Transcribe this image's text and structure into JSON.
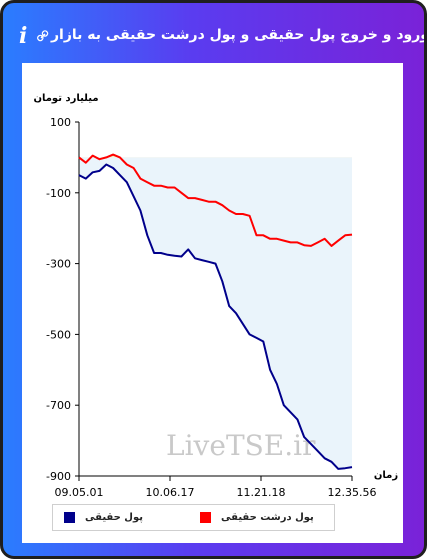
{
  "header": {
    "title": "برآیند ورود و خروج پول حقیقی و پول درشت حقیقی به بازار",
    "info_icon": "info-icon",
    "link_icon": "link-icon"
  },
  "colors": {
    "real_money": "#00008b",
    "large_real_money": "#ff0000",
    "area_real": "#eaf4fb",
    "area_large": "#f2efbf"
  },
  "chart_data": {
    "type": "line",
    "title": "",
    "ylabel": "میلیارد تومان",
    "xlabel": "زمان",
    "ylim": [
      -900,
      100
    ],
    "yticks": [
      100,
      -100,
      -300,
      -500,
      -700,
      -900
    ],
    "xtick_labels": [
      "09.05.01",
      "10.06.17",
      "11.21.18",
      "12.35.56"
    ],
    "x_range": [
      "09:05:01",
      "12:35:56"
    ],
    "watermark": "LiveTSE.ir",
    "baseline": 0,
    "series": [
      {
        "name": "پول حقیقی",
        "color": "#00008b",
        "fill": "#eaf4fb",
        "values": [
          -50,
          -60,
          -42,
          -38,
          -20,
          -30,
          -50,
          -70,
          -110,
          -150,
          -220,
          -270,
          -270,
          -275,
          -278,
          -280,
          -260,
          -285,
          -290,
          -295,
          -300,
          -350,
          -420,
          -440,
          -470,
          -500,
          -510,
          -520,
          -600,
          -640,
          -700,
          -720,
          -740,
          -790,
          -810,
          -830,
          -850,
          -860,
          -880,
          -878,
          -875
        ]
      },
      {
        "name": "پول درشت حقیقی",
        "color": "#ff0000",
        "fill": "#f2efbf",
        "values": [
          0,
          -15,
          5,
          -5,
          0,
          8,
          0,
          -20,
          -30,
          -60,
          -70,
          -80,
          -80,
          -85,
          -85,
          -100,
          -115,
          -115,
          -120,
          -125,
          -125,
          -135,
          -150,
          -160,
          -160,
          -165,
          -220,
          -220,
          -230,
          -230,
          -235,
          -240,
          -240,
          -248,
          -250,
          -240,
          -230,
          -250,
          -235,
          -220,
          -218
        ]
      }
    ],
    "legend_placement": "bottom",
    "grid": false
  }
}
